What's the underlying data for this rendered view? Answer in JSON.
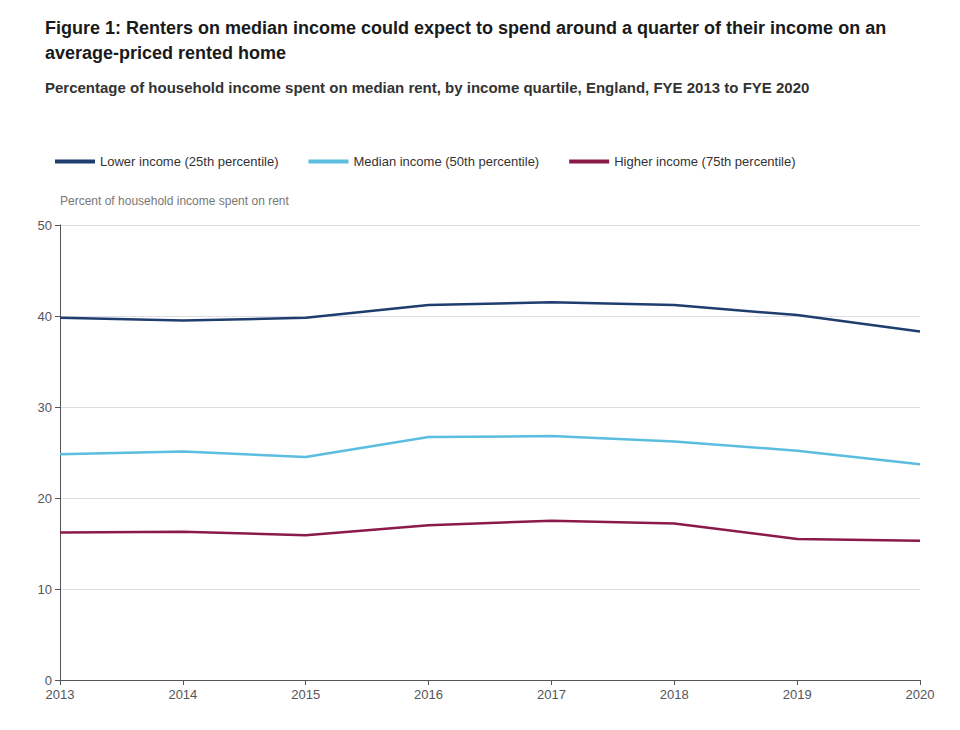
{
  "chart_data": {
    "type": "line",
    "title": "Figure 1: Renters on median income could expect to spend around a quarter of their income on an average-priced rented home",
    "subtitle": "Percentage of household income spent on median rent, by income quartile, England, FYE 2013 to FYE 2020",
    "ylabel": "Percent of household income spent on rent",
    "x": [
      2013,
      2014,
      2015,
      2016,
      2017,
      2018,
      2019,
      2020
    ],
    "series": [
      {
        "name": "Lower income (25th percentile)",
        "color": "#1f3d6e",
        "values": [
          39.8,
          39.5,
          39.8,
          41.2,
          41.5,
          41.2,
          40.1,
          38.3
        ]
      },
      {
        "name": "Median income (50th percentile)",
        "color": "#5bbde0",
        "values": [
          24.8,
          25.1,
          24.5,
          26.7,
          26.8,
          26.2,
          25.2,
          23.7
        ]
      },
      {
        "name": "Higher income (75th percentile)",
        "color": "#8b1a4a",
        "values": [
          16.2,
          16.3,
          15.9,
          17.0,
          17.5,
          17.2,
          15.5,
          15.3
        ]
      }
    ],
    "xlim": [
      2013,
      2020
    ],
    "xticks": [
      2013,
      2014,
      2015,
      2016,
      2017,
      2018,
      2019,
      2020
    ],
    "ylim": [
      0,
      50
    ],
    "yticks": [
      0,
      10,
      20,
      30,
      40,
      50
    ],
    "grid": true,
    "legend": "top"
  }
}
